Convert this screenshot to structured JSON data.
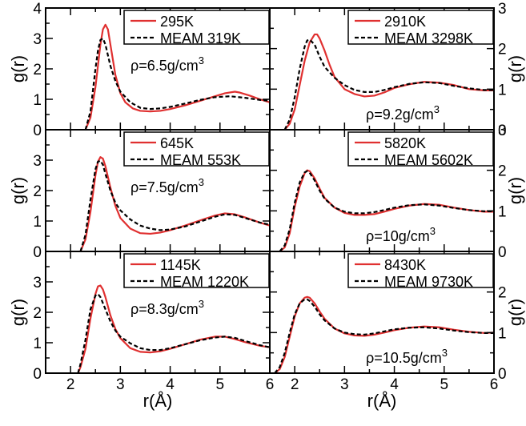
{
  "chart_data": {
    "type": "line",
    "xlabel": "r(Å)",
    "ylabel": "g(r)",
    "xlim": [
      1.5,
      6
    ],
    "xticks": [
      2,
      3,
      4,
      5,
      6
    ],
    "colors": {
      "expt": "#e03030",
      "meam": "#000000"
    },
    "panels": [
      {
        "id": "top-left",
        "row": 0,
        "col": 0,
        "ylim": [
          0,
          4
        ],
        "yticks": [
          0,
          1,
          2,
          3,
          4
        ],
        "ytick_side": "left",
        "annotation": "ρ=6.5g/cm",
        "annotation_sup": "3",
        "series": [
          {
            "name": "295K",
            "style": "solid",
            "x": [
              2.3,
              2.4,
              2.5,
              2.55,
              2.6,
              2.65,
              2.7,
              2.75,
              2.8,
              2.9,
              3.0,
              3.1,
              3.25,
              3.4,
              3.6,
              3.8,
              4.0,
              4.3,
              4.6,
              4.9,
              5.1,
              5.3,
              5.4,
              5.6,
              5.8,
              6.0
            ],
            "y": [
              0.0,
              0.4,
              1.4,
              2.1,
              2.8,
              3.3,
              3.45,
              3.3,
              2.8,
              1.8,
              1.2,
              0.9,
              0.7,
              0.62,
              0.6,
              0.62,
              0.68,
              0.8,
              0.95,
              1.1,
              1.2,
              1.25,
              1.22,
              1.12,
              1.0,
              0.9
            ]
          },
          {
            "name": "MEAM 319K",
            "style": "dashed",
            "x": [
              2.3,
              2.4,
              2.5,
              2.55,
              2.6,
              2.65,
              2.7,
              2.8,
              2.9,
              3.0,
              3.2,
              3.4,
              3.6,
              3.8,
              4.0,
              4.3,
              4.6,
              4.9,
              5.2,
              5.5,
              5.8,
              6.0
            ],
            "y": [
              0.0,
              0.6,
              2.0,
              2.6,
              2.95,
              3.0,
              2.8,
              2.1,
              1.6,
              1.25,
              0.9,
              0.72,
              0.68,
              0.7,
              0.75,
              0.86,
              0.98,
              1.07,
              1.1,
              1.05,
              0.98,
              0.95
            ]
          }
        ]
      },
      {
        "id": "top-right",
        "row": 0,
        "col": 1,
        "ylim": [
          0,
          3
        ],
        "yticks": [
          0,
          1,
          2,
          3
        ],
        "ytick_side": "right",
        "annotation": "ρ=9.2g/cm",
        "annotation_sup": "3",
        "series": [
          {
            "name": "2910K",
            "style": "solid",
            "x": [
              1.8,
              1.9,
              2.0,
              2.1,
              2.2,
              2.3,
              2.4,
              2.45,
              2.5,
              2.6,
              2.7,
              2.8,
              3.0,
              3.2,
              3.4,
              3.6,
              3.8,
              4.0,
              4.3,
              4.6,
              4.9,
              5.2,
              5.5,
              5.8,
              6.0
            ],
            "y": [
              0.0,
              0.15,
              0.5,
              1.1,
              1.7,
              2.15,
              2.35,
              2.35,
              2.25,
              1.95,
              1.6,
              1.3,
              1.0,
              0.88,
              0.82,
              0.84,
              0.92,
              1.03,
              1.12,
              1.18,
              1.16,
              1.1,
              1.0,
              0.97,
              0.97
            ]
          },
          {
            "name": "MEAM 3298K",
            "style": "dashed",
            "x": [
              1.8,
              1.9,
              2.0,
              2.1,
              2.2,
              2.25,
              2.3,
              2.4,
              2.5,
              2.6,
              2.8,
              3.0,
              3.2,
              3.4,
              3.6,
              3.8,
              4.0,
              4.3,
              4.6,
              4.9,
              5.2,
              5.5,
              5.8,
              6.0
            ],
            "y": [
              0.0,
              0.25,
              0.8,
              1.5,
              2.05,
              2.2,
              2.22,
              2.1,
              1.8,
              1.55,
              1.28,
              1.1,
              0.98,
              0.93,
              0.93,
              0.98,
              1.05,
              1.13,
              1.17,
              1.15,
              1.08,
              1.02,
              0.98,
              0.98
            ]
          }
        ]
      },
      {
        "id": "mid-left",
        "row": 1,
        "col": 0,
        "ylim": [
          0,
          4
        ],
        "yticks": [
          0,
          1,
          2,
          3
        ],
        "ytick_side": "left",
        "annotation": "ρ=7.5g/cm",
        "annotation_sup": "3",
        "series": [
          {
            "name": "645K",
            "style": "solid",
            "x": [
              2.2,
              2.3,
              2.4,
              2.5,
              2.55,
              2.6,
              2.65,
              2.7,
              2.8,
              2.9,
              3.0,
              3.2,
              3.4,
              3.6,
              3.8,
              4.0,
              4.3,
              4.6,
              4.9,
              5.1,
              5.3,
              5.5,
              5.8,
              6.0
            ],
            "y": [
              0.0,
              0.4,
              1.3,
              2.5,
              2.95,
              3.1,
              3.05,
              2.8,
              2.1,
              1.5,
              1.1,
              0.75,
              0.6,
              0.58,
              0.62,
              0.7,
              0.85,
              1.02,
              1.18,
              1.25,
              1.22,
              1.12,
              0.95,
              0.85
            ]
          },
          {
            "name": "MEAM 553K",
            "style": "dashed",
            "x": [
              2.2,
              2.3,
              2.4,
              2.5,
              2.55,
              2.6,
              2.65,
              2.7,
              2.8,
              2.9,
              3.0,
              3.2,
              3.4,
              3.6,
              3.8,
              4.0,
              4.3,
              4.6,
              4.9,
              5.1,
              5.3,
              5.5,
              5.8,
              6.0
            ],
            "y": [
              0.0,
              0.55,
              1.7,
              2.7,
              2.95,
              2.98,
              2.85,
              2.55,
              2.0,
              1.6,
              1.35,
              1.05,
              0.85,
              0.75,
              0.7,
              0.72,
              0.82,
              0.98,
              1.14,
              1.22,
              1.2,
              1.1,
              0.95,
              0.88
            ]
          }
        ]
      },
      {
        "id": "mid-right",
        "row": 1,
        "col": 1,
        "ylim": [
          0,
          3
        ],
        "yticks": [
          0,
          1,
          2,
          3
        ],
        "ytick_side": "right",
        "annotation": "ρ=10g/cm",
        "annotation_sup": "3",
        "series": [
          {
            "name": "5820K",
            "style": "solid",
            "x": [
              1.7,
              1.8,
              1.9,
              2.0,
              2.1,
              2.2,
              2.25,
              2.3,
              2.4,
              2.5,
              2.6,
              2.8,
              3.0,
              3.2,
              3.4,
              3.6,
              3.8,
              4.0,
              4.3,
              4.6,
              4.9,
              5.2,
              5.5,
              5.8,
              6.0
            ],
            "y": [
              0.0,
              0.1,
              0.45,
              1.1,
              1.6,
              1.93,
              2.0,
              1.98,
              1.8,
              1.55,
              1.32,
              1.08,
              0.95,
              0.9,
              0.9,
              0.92,
              0.98,
              1.05,
              1.13,
              1.17,
              1.15,
              1.08,
              1.02,
              0.98,
              0.98
            ]
          },
          {
            "name": "MEAM 5602K",
            "style": "dashed",
            "x": [
              1.7,
              1.8,
              1.9,
              2.0,
              2.1,
              2.2,
              2.25,
              2.3,
              2.4,
              2.5,
              2.6,
              2.8,
              3.0,
              3.2,
              3.4,
              3.6,
              3.8,
              4.0,
              4.3,
              4.6,
              4.9,
              5.2,
              5.5,
              5.8,
              6.0
            ],
            "y": [
              0.0,
              0.15,
              0.55,
              1.2,
              1.7,
              1.95,
              1.98,
              1.94,
              1.75,
              1.5,
              1.3,
              1.08,
              0.98,
              0.94,
              0.94,
              0.97,
              1.02,
              1.08,
              1.14,
              1.16,
              1.13,
              1.07,
              1.02,
              0.99,
              0.99
            ]
          }
        ]
      },
      {
        "id": "bottom-left",
        "row": 2,
        "col": 0,
        "ylim": [
          0,
          4
        ],
        "yticks": [
          0,
          1,
          2,
          3
        ],
        "ytick_side": "left",
        "annotation": "ρ=8.3g/cm",
        "annotation_sup": "3",
        "series": [
          {
            "name": "1145K",
            "style": "solid",
            "x": [
              2.15,
              2.2,
              2.3,
              2.4,
              2.5,
              2.55,
              2.6,
              2.65,
              2.7,
              2.8,
              2.9,
              3.0,
              3.2,
              3.4,
              3.6,
              3.8,
              4.0,
              4.3,
              4.6,
              4.9,
              5.1,
              5.3,
              5.5,
              5.8,
              6.0
            ],
            "y": [
              0.0,
              0.2,
              0.8,
              1.8,
              2.6,
              2.85,
              2.88,
              2.75,
              2.5,
              1.9,
              1.45,
              1.15,
              0.82,
              0.7,
              0.68,
              0.72,
              0.8,
              0.95,
              1.1,
              1.2,
              1.2,
              1.12,
              1.02,
              0.9,
              0.85
            ]
          },
          {
            "name": "MEAM 1220K",
            "style": "dashed",
            "x": [
              2.15,
              2.2,
              2.3,
              2.4,
              2.5,
              2.55,
              2.6,
              2.7,
              2.8,
              2.9,
              3.0,
              3.2,
              3.4,
              3.6,
              3.8,
              4.0,
              4.3,
              4.6,
              4.9,
              5.1,
              5.3,
              5.5,
              5.8,
              6.0
            ],
            "y": [
              0.0,
              0.3,
              1.1,
              2.1,
              2.55,
              2.6,
              2.5,
              2.1,
              1.7,
              1.4,
              1.2,
              0.98,
              0.82,
              0.76,
              0.76,
              0.82,
              0.95,
              1.08,
              1.17,
              1.2,
              1.16,
              1.06,
              0.92,
              0.85
            ]
          }
        ]
      },
      {
        "id": "bottom-right",
        "row": 2,
        "col": 1,
        "ylim": [
          0,
          3
        ],
        "yticks": [
          0,
          1,
          2
        ],
        "ytick_side": "right",
        "annotation": "ρ=10.5g/cm",
        "annotation_sup": "3",
        "series": [
          {
            "name": "8430K",
            "style": "solid",
            "x": [
              1.6,
              1.7,
              1.8,
              1.9,
              2.0,
              2.1,
              2.2,
              2.25,
              2.3,
              2.4,
              2.5,
              2.6,
              2.8,
              3.0,
              3.2,
              3.4,
              3.6,
              3.8,
              4.0,
              4.3,
              4.6,
              4.9,
              5.2,
              5.5,
              5.8,
              6.0
            ],
            "y": [
              0.0,
              0.1,
              0.4,
              0.9,
              1.4,
              1.72,
              1.86,
              1.88,
              1.86,
              1.72,
              1.52,
              1.34,
              1.1,
              0.98,
              0.93,
              0.92,
              0.95,
              1.0,
              1.06,
              1.12,
              1.15,
              1.13,
              1.07,
              1.02,
              0.99,
              1.0
            ]
          },
          {
            "name": "MEAM 9730K",
            "style": "dashed",
            "x": [
              1.6,
              1.7,
              1.8,
              1.9,
              2.0,
              2.1,
              2.2,
              2.25,
              2.3,
              2.4,
              2.5,
              2.6,
              2.8,
              3.0,
              3.2,
              3.4,
              3.6,
              3.8,
              4.0,
              4.3,
              4.6,
              4.9,
              5.2,
              5.5,
              5.8,
              6.0
            ],
            "y": [
              0.0,
              0.15,
              0.5,
              1.0,
              1.45,
              1.72,
              1.82,
              1.82,
              1.78,
              1.64,
              1.45,
              1.3,
              1.1,
              1.0,
              0.96,
              0.95,
              0.98,
              1.03,
              1.08,
              1.12,
              1.13,
              1.1,
              1.05,
              1.01,
              0.99,
              0.99
            ]
          }
        ]
      }
    ]
  }
}
